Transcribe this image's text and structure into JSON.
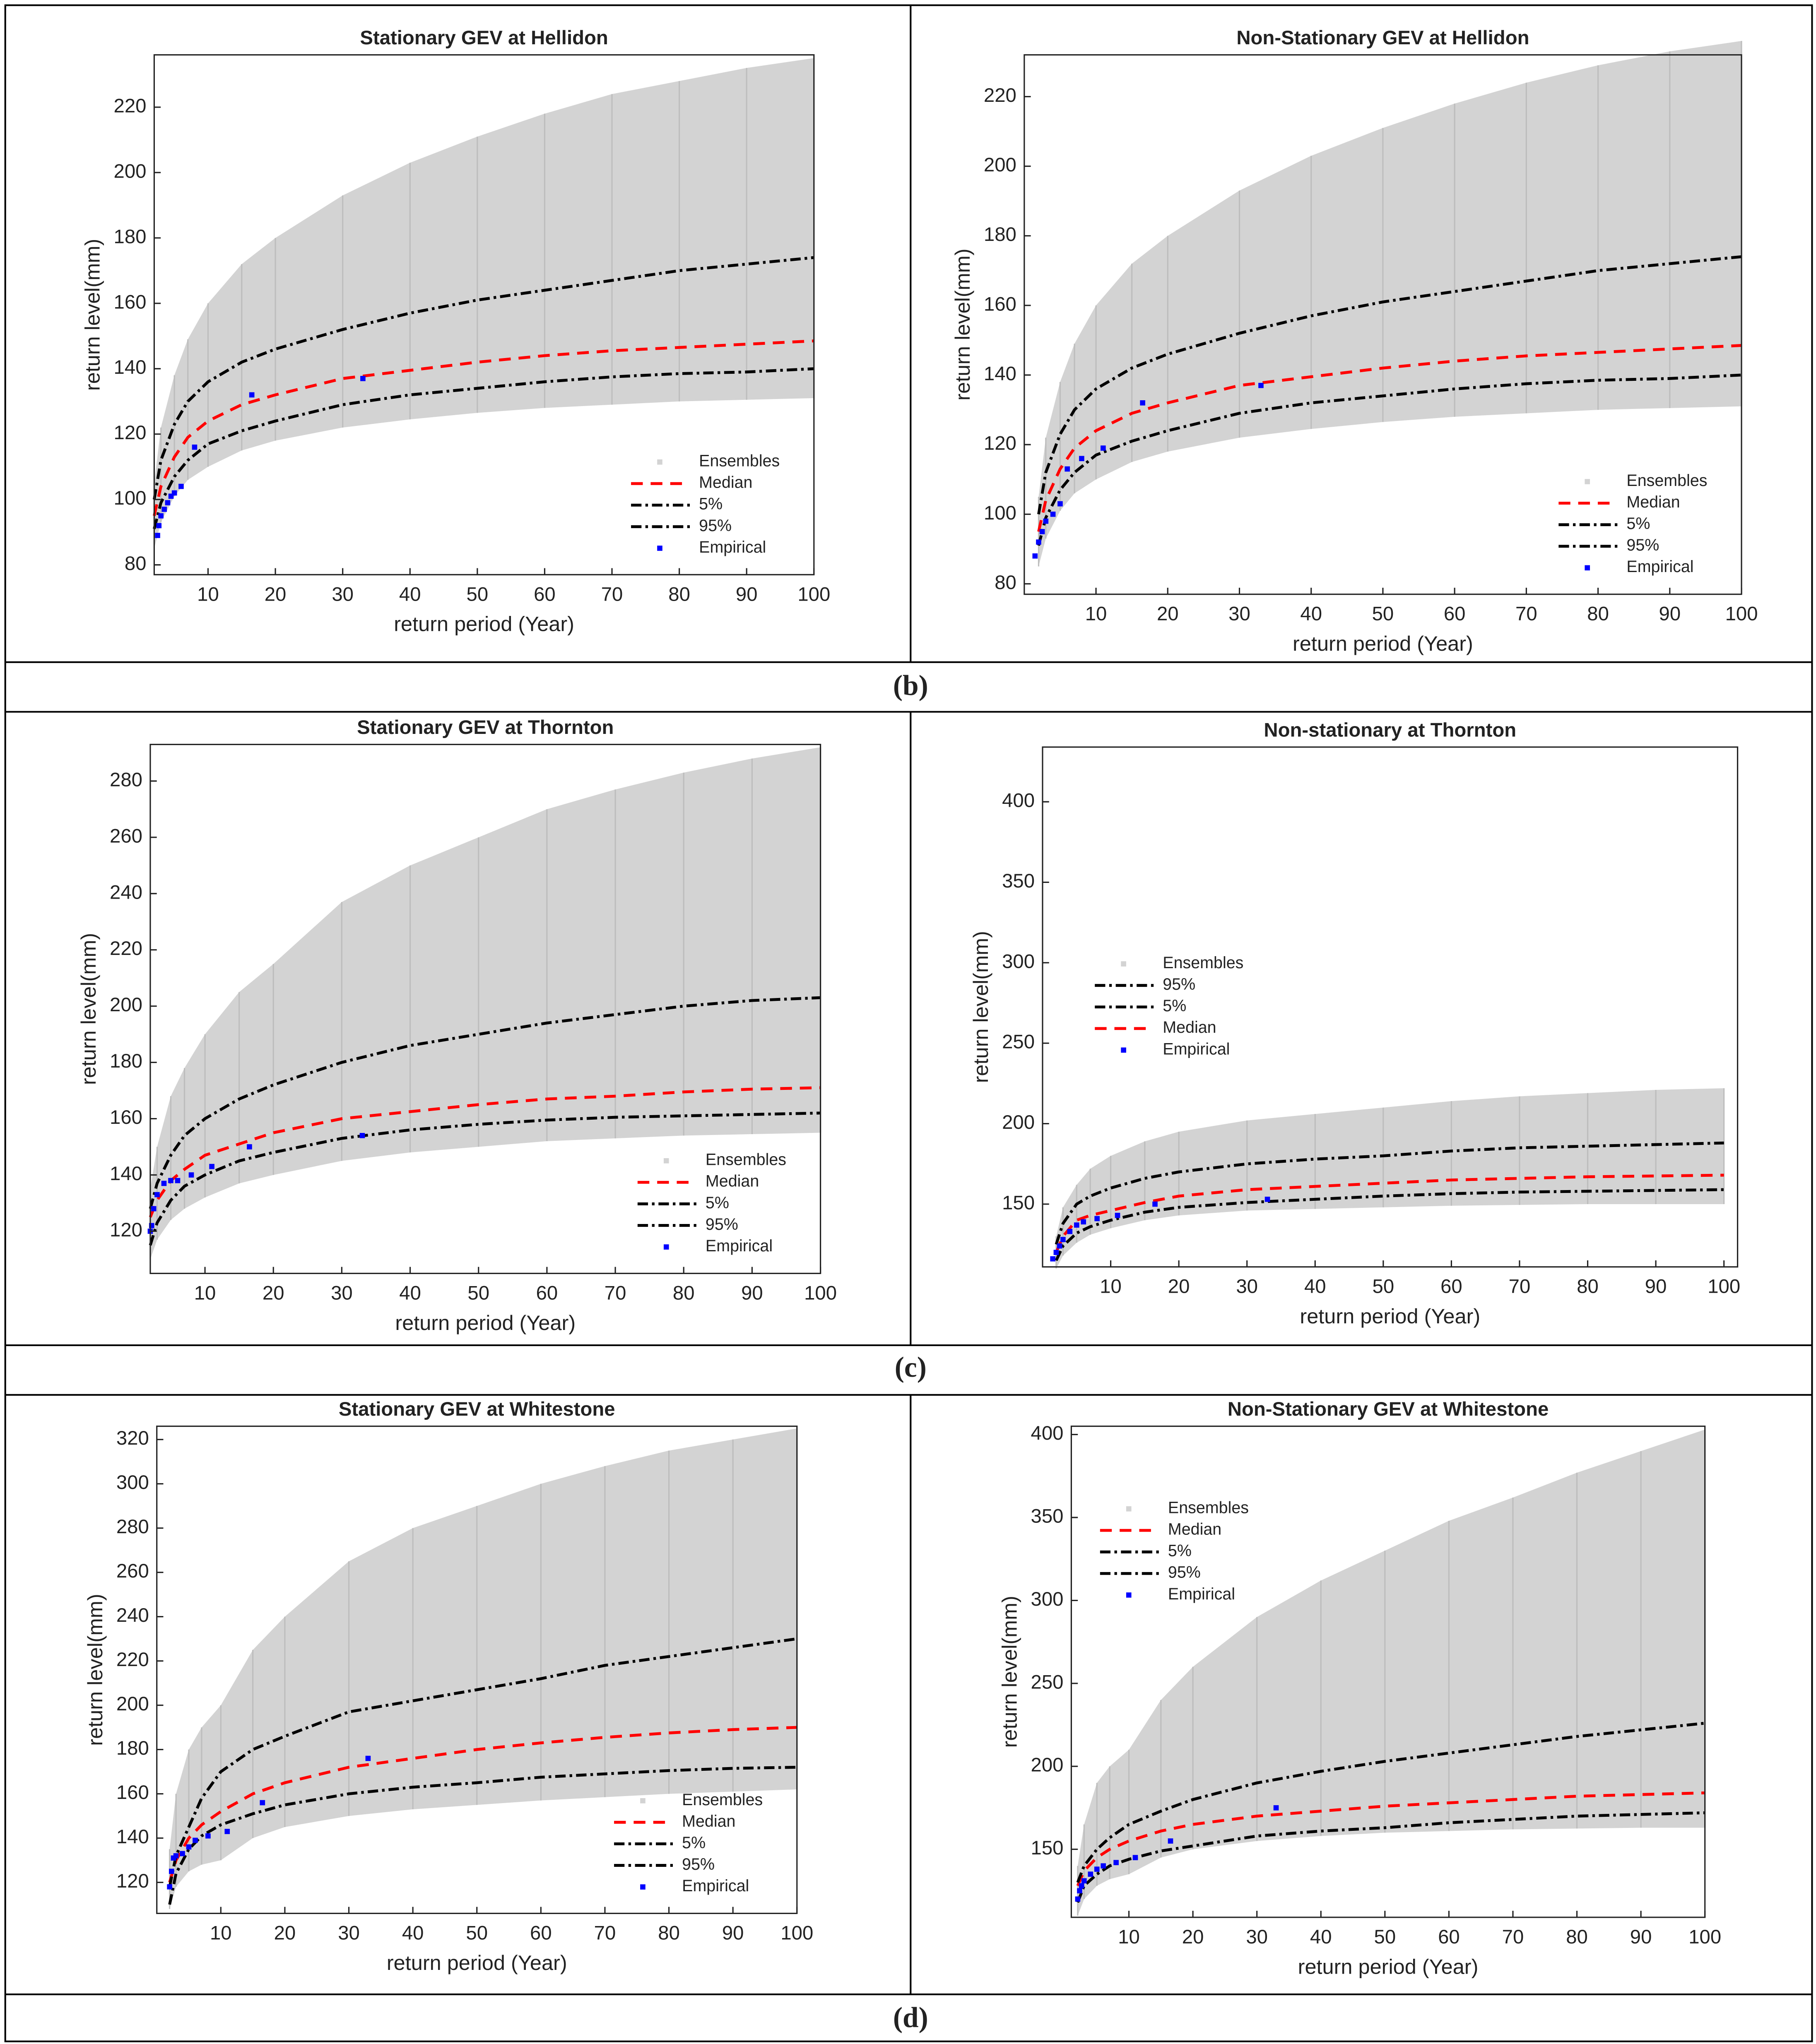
{
  "panels": [
    "(b)",
    "(c)",
    "(d)"
  ],
  "chart_data": [
    {
      "type": "line",
      "title": "Stationary GEV at Hellidon",
      "xlabel": "return period (Year)",
      "ylabel": "return level(mm)",
      "xlim": [
        2,
        100
      ],
      "xticks": [
        10,
        20,
        30,
        40,
        50,
        60,
        70,
        80,
        90,
        100
      ],
      "ylim": [
        77,
        236
      ],
      "yticks": [
        80,
        100,
        120,
        140,
        160,
        180,
        200,
        220
      ],
      "legend": "lower right",
      "x": [
        2,
        3,
        5,
        7,
        10,
        15,
        20,
        30,
        40,
        50,
        60,
        70,
        80,
        90,
        100
      ],
      "series": [
        {
          "name": "Ensembles",
          "color": "#d3d3d3",
          "values": [
            105,
            122,
            138,
            149,
            160,
            172,
            180,
            193,
            203,
            211,
            218,
            224,
            228,
            232,
            235
          ],
          "lower": [
            85,
            93,
            101,
            106,
            110,
            115,
            118,
            122,
            124.5,
            126.5,
            128,
            129,
            130,
            130.5,
            131
          ]
        },
        {
          "name": "Median",
          "color": "#ff0000",
          "linestyle": "--",
          "values": [
            95,
            104,
            113,
            119,
            124,
            129,
            132,
            137,
            139.5,
            142,
            144,
            145.5,
            146.5,
            147.5,
            148.5
          ]
        },
        {
          "name": "5%",
          "color": "#000000",
          "linestyle": "-.",
          "values": [
            91,
            99,
            107,
            112,
            117,
            121,
            124,
            129,
            132,
            134,
            136,
            137.5,
            138.5,
            139,
            140
          ]
        },
        {
          "name": "95%",
          "color": "#000000",
          "linestyle": "-.",
          "values": [
            100,
            112,
            123,
            130,
            136,
            142,
            146,
            152,
            157,
            161,
            164,
            167,
            170,
            172,
            174
          ]
        },
        {
          "name": "Empirical",
          "color": "#0000ff",
          "x": [
            2.5,
            2.7,
            3,
            3.5,
            4,
            4.5,
            5,
            6,
            8,
            16.5,
            33
          ],
          "values": [
            89,
            92,
            95,
            97,
            99,
            101,
            102,
            104,
            116,
            132,
            137
          ]
        }
      ]
    },
    {
      "type": "line",
      "title": "Non-Stationary GEV at Hellidon",
      "xlabel": "return period (Year)",
      "ylabel": "return level(mm)",
      "xlim": [
        0,
        100
      ],
      "xticks": [
        10,
        20,
        30,
        40,
        50,
        60,
        70,
        80,
        90,
        100
      ],
      "ylim": [
        77,
        232
      ],
      "yticks": [
        80,
        100,
        120,
        140,
        160,
        180,
        200,
        220
      ],
      "legend": "lower right",
      "x": [
        2,
        3,
        5,
        7,
        10,
        15,
        20,
        30,
        40,
        50,
        60,
        70,
        80,
        90,
        100
      ],
      "series": [
        {
          "name": "Ensembles",
          "color": "#d3d3d3",
          "values": [
            105,
            122,
            138,
            149,
            160,
            172,
            180,
            193,
            203,
            211,
            218,
            224,
            229,
            233,
            236
          ],
          "lower": [
            85,
            93,
            101,
            106,
            110,
            115,
            118,
            122,
            124.5,
            126.5,
            128,
            129,
            130,
            130.5,
            131
          ]
        },
        {
          "name": "Median",
          "color": "#ff0000",
          "linestyle": "--",
          "values": [
            95,
            104,
            113,
            119,
            124,
            129,
            132,
            137,
            139.5,
            142,
            144,
            145.5,
            146.5,
            147.5,
            148.5
          ]
        },
        {
          "name": "5%",
          "color": "#000000",
          "linestyle": "-.",
          "values": [
            91,
            99,
            107,
            112,
            117,
            121,
            124,
            129,
            132,
            134,
            136,
            137.5,
            138.5,
            139,
            140
          ]
        },
        {
          "name": "95%",
          "color": "#000000",
          "linestyle": "-.",
          "values": [
            100,
            112,
            123,
            130,
            136,
            142,
            146,
            152,
            157,
            161,
            164,
            167,
            170,
            172,
            174
          ]
        },
        {
          "name": "Empirical",
          "color": "#0000ff",
          "x": [
            1.5,
            2,
            2.5,
            3,
            4,
            5,
            6,
            8,
            11,
            16.5,
            33
          ],
          "values": [
            88,
            92,
            95,
            98,
            100,
            103,
            113,
            116,
            119,
            132,
            137
          ]
        }
      ]
    },
    {
      "type": "line",
      "title": "Stationary GEV at Thornton",
      "xlabel": "return period (Year)",
      "ylabel": "return level(mm)",
      "xlim": [
        2,
        100
      ],
      "xticks": [
        10,
        20,
        30,
        40,
        50,
        60,
        70,
        80,
        90,
        100
      ],
      "ylim": [
        105,
        293
      ],
      "yticks": [
        120,
        140,
        160,
        180,
        200,
        220,
        240,
        260,
        280
      ],
      "legend": "lower right",
      "x": [
        2,
        3,
        5,
        7,
        10,
        15,
        20,
        30,
        40,
        50,
        60,
        70,
        80,
        90,
        100
      ],
      "series": [
        {
          "name": "Ensembles",
          "color": "#d3d3d3",
          "values": [
            135,
            150,
            168,
            178,
            190,
            205,
            215,
            237,
            250,
            260,
            270,
            277,
            283,
            288,
            292
          ],
          "lower": [
            110,
            117,
            124,
            128,
            132,
            137,
            140,
            145,
            148,
            150,
            152,
            153,
            154,
            154.5,
            155
          ]
        },
        {
          "name": "Median",
          "color": "#ff0000",
          "linestyle": "--",
          "values": [
            125,
            131,
            138,
            142,
            147,
            151,
            155,
            160,
            162.5,
            165,
            167,
            168,
            169.5,
            170.5,
            171
          ]
        },
        {
          "name": "5%",
          "color": "#000000",
          "linestyle": "-.",
          "values": [
            115,
            123,
            131,
            136,
            140,
            145,
            148,
            153,
            156,
            158,
            159.5,
            160.5,
            161,
            161.5,
            162
          ]
        },
        {
          "name": "95%",
          "color": "#000000",
          "linestyle": "-.",
          "values": [
            128,
            137,
            147,
            154,
            160,
            167,
            172,
            180,
            186,
            190,
            194,
            197,
            200,
            202,
            203
          ]
        },
        {
          "name": "Empirical",
          "color": "#0000ff",
          "x": [
            2,
            2.2,
            2.5,
            3,
            4,
            5,
            6,
            8,
            11,
            16.5,
            33
          ],
          "values": [
            120,
            122,
            128,
            133,
            137,
            138,
            138,
            140,
            143,
            150,
            154
          ]
        }
      ]
    },
    {
      "type": "line",
      "title": "Non-stationary at Thornton",
      "xlabel": "return period (Year)",
      "ylabel": "return level(mm)",
      "xlim": [
        0,
        102
      ],
      "xticks": [
        10,
        20,
        30,
        40,
        50,
        60,
        70,
        80,
        90,
        100
      ],
      "ylim": [
        111,
        434
      ],
      "yticks": [
        150,
        200,
        250,
        300,
        350,
        400
      ],
      "legend": "center left",
      "x": [
        2,
        3,
        5,
        7,
        10,
        15,
        20,
        30,
        40,
        50,
        60,
        70,
        80,
        90,
        100
      ],
      "series": [
        {
          "name": "Ensembles",
          "color": "#d3d3d3",
          "values": [
            130,
            148,
            162,
            172,
            180,
            189,
            195,
            202,
            206,
            210,
            214,
            217,
            219,
            221,
            222
          ],
          "lower": [
            110,
            118,
            126,
            131,
            135,
            140,
            143,
            146,
            147,
            148,
            149,
            149.5,
            150,
            150,
            150
          ]
        },
        {
          "name": "95%",
          "color": "#000000",
          "linestyle": "-.",
          "values": [
            125,
            138,
            150,
            155,
            160,
            166,
            170,
            175,
            178,
            180,
            183,
            185,
            186,
            187,
            188
          ]
        },
        {
          "name": "5%",
          "color": "#000000",
          "linestyle": "-.",
          "values": [
            115,
            124,
            132,
            136,
            140,
            145,
            148,
            151,
            153,
            155,
            156.5,
            157.5,
            158,
            158.5,
            159
          ]
        },
        {
          "name": "Median",
          "color": "#ff0000",
          "linestyle": "--",
          "values": [
            120,
            130,
            140,
            143,
            146,
            151,
            155,
            159,
            161,
            163,
            165,
            166,
            167,
            167.5,
            168
          ]
        },
        {
          "name": "Empirical",
          "color": "#0000ff",
          "x": [
            1.5,
            2,
            2.5,
            3,
            4,
            5,
            6,
            8,
            11,
            16.5,
            33
          ],
          "values": [
            116,
            120,
            124,
            128,
            133,
            137,
            139,
            141,
            143,
            150,
            153
          ]
        }
      ]
    },
    {
      "type": "line",
      "title": "Stationary GEV at Whitestone",
      "xlabel": "return period (Year)",
      "ylabel": "return level(mm)",
      "xlim": [
        0,
        100
      ],
      "xticks": [
        10,
        20,
        30,
        40,
        50,
        60,
        70,
        80,
        90,
        100
      ],
      "ylim": [
        106,
        326
      ],
      "yticks": [
        120,
        140,
        160,
        180,
        200,
        220,
        240,
        260,
        280,
        300,
        320
      ],
      "legend": "lower right",
      "x": [
        2,
        3,
        5,
        7,
        10,
        15,
        20,
        30,
        40,
        50,
        60,
        70,
        80,
        90,
        100
      ],
      "series": [
        {
          "name": "Ensembles",
          "color": "#d3d3d3",
          "values": [
            135,
            160,
            180,
            190,
            200,
            225,
            240,
            265,
            280,
            290,
            300,
            308,
            315,
            320,
            325
          ],
          "lower": [
            108,
            118,
            125,
            128,
            130,
            140,
            145,
            150,
            153,
            155,
            157,
            158.5,
            160,
            161,
            162
          ]
        },
        {
          "name": "Median",
          "color": "#ff0000",
          "linestyle": "--",
          "values": [
            120,
            130,
            140,
            146,
            152,
            160,
            165,
            172,
            176,
            180,
            183,
            185.5,
            187.5,
            189,
            190
          ]
        },
        {
          "name": "5%",
          "color": "#000000",
          "linestyle": "-.",
          "values": [
            110,
            124,
            135,
            141,
            146,
            151,
            155,
            160,
            163,
            165,
            167.5,
            169,
            170.5,
            171.5,
            172
          ]
        },
        {
          "name": "95%",
          "color": "#000000",
          "linestyle": "-.",
          "values": [
            118,
            132,
            145,
            158,
            170,
            180,
            186,
            197,
            202,
            207,
            212,
            218,
            222,
            226,
            230
          ]
        },
        {
          "name": "Empirical",
          "color": "#0000ff",
          "x": [
            2,
            2.3,
            2.6,
            3,
            4,
            5,
            6,
            8,
            11,
            16.5,
            33
          ],
          "values": [
            118,
            125,
            131,
            132,
            133,
            136,
            139,
            141,
            143,
            156,
            176
          ]
        }
      ]
    },
    {
      "type": "line",
      "title": "Non-Stationary GEV at Whitestone",
      "xlabel": "return period (Year)",
      "ylabel": "return level(mm)",
      "xlim": [
        1,
        100
      ],
      "xticks": [
        10,
        20,
        30,
        40,
        50,
        60,
        70,
        80,
        90,
        100
      ],
      "ylim": [
        109,
        405
      ],
      "yticks": [
        150,
        200,
        250,
        300,
        350,
        400
      ],
      "legend": "upper left",
      "x": [
        2,
        3,
        5,
        7,
        10,
        15,
        20,
        30,
        40,
        50,
        60,
        70,
        80,
        90,
        100
      ],
      "series": [
        {
          "name": "Ensembles",
          "color": "#d3d3d3",
          "values": [
            140,
            165,
            190,
            200,
            210,
            240,
            260,
            290,
            312,
            330,
            348,
            362,
            377,
            390,
            403
          ],
          "lower": [
            110,
            120,
            128,
            132,
            135,
            145,
            150,
            155,
            158,
            160,
            161,
            162,
            162.5,
            163,
            163
          ]
        },
        {
          "name": "Median",
          "color": "#ff0000",
          "linestyle": "--",
          "values": [
            128,
            137,
            145,
            150,
            155,
            161,
            165,
            170,
            173,
            176,
            178,
            180,
            182,
            183,
            184
          ]
        },
        {
          "name": "5%",
          "color": "#000000",
          "linestyle": "-.",
          "values": [
            118,
            128,
            135,
            140,
            144,
            149,
            152,
            158,
            161,
            163,
            166,
            168,
            170,
            171,
            172
          ]
        },
        {
          "name": "95%",
          "color": "#000000",
          "linestyle": "-.",
          "values": [
            130,
            140,
            150,
            157,
            165,
            173,
            180,
            190,
            197,
            203,
            208,
            213,
            218,
            222,
            226
          ]
        },
        {
          "name": "Empirical",
          "color": "#0000ff",
          "x": [
            2,
            2.3,
            2.6,
            3,
            4,
            5,
            6,
            8,
            11,
            16.5,
            33
          ],
          "values": [
            120,
            125,
            128,
            131,
            135,
            138,
            140,
            142,
            145,
            155,
            175
          ]
        }
      ]
    }
  ]
}
